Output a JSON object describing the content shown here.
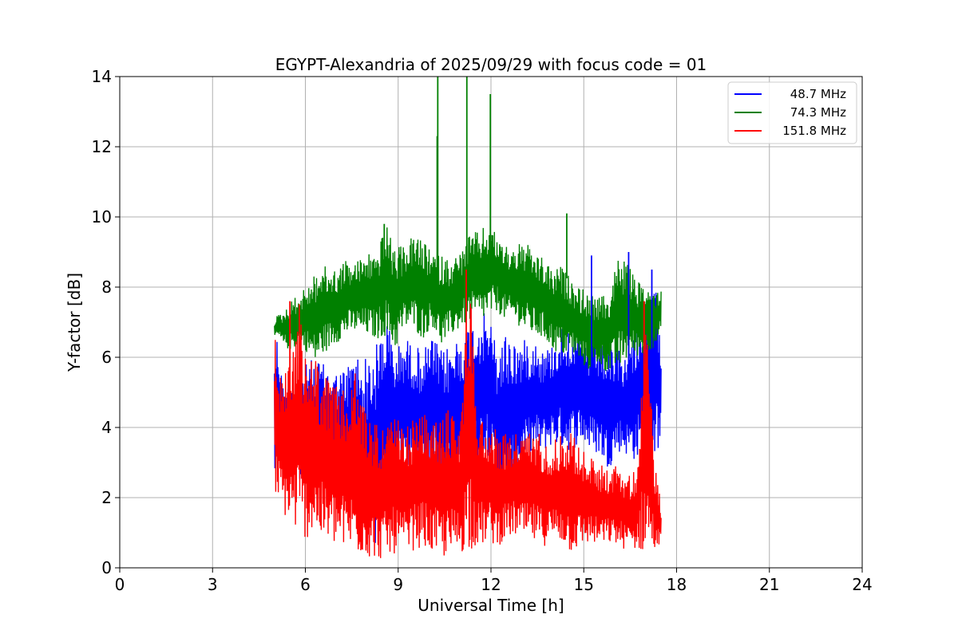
{
  "chart_data": {
    "type": "line",
    "title": "EGYPT-Alexandria of 2025/09/29 with focus code = 01",
    "xlabel": "Universal Time [h]",
    "ylabel": "Y-factor [dB]",
    "xlim": [
      0,
      24
    ],
    "ylim": [
      0,
      14
    ],
    "xticks": [
      0,
      3,
      6,
      9,
      12,
      15,
      18,
      21,
      24
    ],
    "yticks": [
      0,
      2,
      4,
      6,
      8,
      10,
      12,
      14
    ],
    "grid": true,
    "legend_position": "top-right",
    "series": [
      {
        "name": "48.7 MHz",
        "color": "#0000ff",
        "x": [
          5.0,
          5.1,
          5.3,
          5.5,
          5.8,
          6.0,
          6.3,
          6.6,
          7.0,
          7.3,
          7.6,
          8.0,
          8.3,
          8.6,
          8.9,
          9.2,
          9.5,
          9.8,
          10.1,
          10.4,
          10.7,
          11.0,
          11.3,
          11.6,
          11.9,
          12.2,
          12.5,
          12.8,
          13.1,
          13.4,
          13.7,
          14.0,
          14.3,
          14.6,
          14.9,
          15.2,
          15.5,
          15.8,
          16.1,
          16.4,
          16.7,
          17.0,
          17.3,
          17.5
        ],
        "min": [
          2.3,
          3.0,
          3.3,
          3.0,
          2.5,
          2.6,
          2.8,
          2.7,
          2.4,
          2.2,
          1.5,
          0.8,
          0.5,
          2.0,
          2.4,
          2.8,
          2.6,
          2.5,
          3.1,
          2.3,
          2.1,
          2.6,
          2.2,
          3.0,
          3.3,
          2.0,
          1.8,
          2.5,
          3.0,
          3.3,
          3.3,
          3.5,
          3.4,
          3.3,
          3.6,
          3.3,
          3.2,
          2.8,
          3.3,
          3.2,
          3.0,
          3.1,
          3.2,
          3.5
        ],
        "max": [
          6.5,
          6.7,
          5.0,
          5.3,
          5.6,
          5.8,
          6.0,
          5.8,
          5.6,
          5.7,
          6.2,
          6.0,
          6.4,
          7.3,
          6.2,
          6.6,
          6.4,
          6.2,
          6.6,
          6.2,
          6.4,
          6.7,
          7.0,
          7.2,
          7.3,
          6.3,
          6.8,
          6.5,
          6.5,
          6.6,
          6.2,
          6.4,
          6.9,
          7.0,
          6.7,
          6.4,
          6.5,
          6.2,
          6.3,
          6.0,
          7.0,
          7.2,
          8.2,
          6.8
        ]
      },
      {
        "name": "74.3 MHz",
        "color": "#008000",
        "x": [
          5.0,
          5.1,
          5.3,
          5.5,
          5.8,
          6.0,
          6.3,
          6.6,
          7.0,
          7.3,
          7.6,
          8.0,
          8.3,
          8.6,
          8.9,
          9.2,
          9.5,
          9.8,
          10.1,
          10.4,
          10.7,
          11.0,
          11.3,
          11.6,
          11.9,
          12.2,
          12.5,
          12.8,
          13.1,
          13.4,
          13.7,
          14.0,
          14.3,
          14.6,
          14.9,
          15.2,
          15.5,
          15.8,
          16.1,
          16.4,
          16.7,
          17.0,
          17.3,
          17.5
        ],
        "min": [
          6.5,
          6.6,
          6.3,
          6.2,
          6.3,
          6.2,
          5.8,
          6.1,
          6.4,
          6.6,
          6.7,
          6.6,
          6.5,
          6.6,
          6.2,
          6.8,
          6.8,
          6.5,
          6.9,
          6.3,
          6.6,
          6.8,
          7.0,
          7.0,
          7.1,
          7.3,
          7.0,
          7.0,
          6.7,
          6.6,
          6.5,
          6.2,
          6.0,
          6.1,
          5.8,
          5.6,
          5.8,
          5.5,
          5.6,
          5.9,
          6.0,
          6.1,
          6.3,
          6.6
        ],
        "max": [
          7.1,
          7.2,
          7.3,
          7.6,
          7.8,
          8.0,
          8.4,
          8.6,
          8.5,
          8.8,
          8.7,
          9.0,
          9.0,
          9.8,
          9.1,
          9.2,
          9.5,
          9.3,
          9.0,
          8.9,
          8.8,
          9.0,
          9.5,
          9.6,
          9.8,
          9.5,
          9.2,
          9.2,
          9.3,
          9.0,
          8.8,
          8.5,
          8.6,
          8.2,
          8.0,
          7.8,
          7.7,
          7.8,
          8.9,
          8.7,
          8.2,
          8.0,
          7.9,
          8.0
        ]
      },
      {
        "name": "151.8 MHz",
        "color": "#ff0000",
        "x": [
          5.0,
          5.1,
          5.3,
          5.5,
          5.8,
          6.0,
          6.3,
          6.6,
          7.0,
          7.3,
          7.6,
          8.0,
          8.3,
          8.6,
          8.9,
          9.2,
          9.5,
          9.8,
          10.1,
          10.4,
          10.7,
          11.0,
          11.3,
          11.6,
          11.9,
          12.2,
          12.5,
          12.8,
          13.1,
          13.4,
          13.7,
          14.0,
          14.3,
          14.6,
          14.9,
          15.2,
          15.5,
          15.8,
          16.1,
          16.4,
          16.7,
          17.0,
          17.3,
          17.5
        ],
        "min": [
          2.2,
          1.8,
          1.5,
          1.2,
          0.9,
          0.8,
          1.0,
          0.7,
          0.6,
          0.5,
          0.4,
          0.3,
          0.2,
          0.3,
          0.4,
          0.3,
          0.5,
          0.6,
          0.4,
          0.3,
          0.2,
          0.4,
          0.5,
          0.6,
          0.7,
          0.6,
          0.8,
          0.9,
          0.8,
          0.7,
          0.6,
          0.8,
          0.7,
          0.4,
          0.6,
          0.7,
          0.6,
          0.7,
          0.6,
          0.5,
          0.5,
          0.4,
          0.5,
          0.5
        ],
        "max": [
          6.8,
          5.8,
          5.6,
          6.0,
          7.6,
          6.0,
          6.1,
          5.5,
          5.2,
          5.0,
          5.6,
          4.4,
          4.2,
          4.1,
          4.3,
          4.0,
          4.3,
          4.4,
          4.2,
          4.3,
          4.6,
          4.2,
          8.4,
          4.3,
          4.2,
          4.0,
          3.8,
          3.9,
          3.8,
          4.0,
          3.8,
          3.6,
          3.9,
          4.0,
          3.4,
          3.2,
          3.0,
          2.8,
          3.0,
          2.6,
          2.8,
          7.6,
          2.9,
          1.9
        ]
      }
    ],
    "spikes": [
      {
        "series": 1,
        "x": 10.28,
        "y": 14.0
      },
      {
        "series": 1,
        "x": 10.26,
        "y": 12.3
      },
      {
        "series": 1,
        "x": 11.22,
        "y": 14.0
      },
      {
        "series": 1,
        "x": 11.98,
        "y": 13.5
      },
      {
        "series": 1,
        "x": 14.45,
        "y": 10.1
      },
      {
        "series": 1,
        "x": 8.55,
        "y": 9.8
      },
      {
        "series": 0,
        "x": 15.25,
        "y": 8.9
      },
      {
        "series": 0,
        "x": 16.45,
        "y": 9.0
      },
      {
        "series": 0,
        "x": 17.2,
        "y": 8.5
      },
      {
        "series": 2,
        "x": 11.2,
        "y": 8.5
      },
      {
        "series": 2,
        "x": 5.5,
        "y": 7.6
      },
      {
        "series": 2,
        "x": 16.95,
        "y": 7.6
      }
    ]
  }
}
